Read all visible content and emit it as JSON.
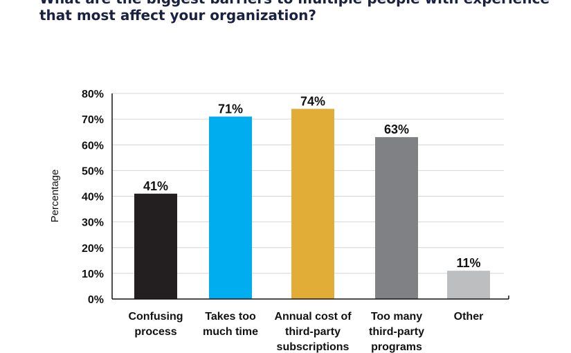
{
  "chart_data": {
    "type": "bar",
    "title_lines": [
      "What are the biggest barriers to multiple people with experience",
      "that most affect your organization?"
    ],
    "categories": [
      [
        "Confusing",
        "process"
      ],
      [
        "Takes too",
        "much time"
      ],
      [
        "Annual cost of",
        "third-party",
        "subscriptions"
      ],
      [
        "Too many",
        "third-party",
        "programs"
      ],
      [
        "Other"
      ]
    ],
    "values": [
      41,
      71,
      74,
      63,
      11
    ],
    "value_labels": [
      "41%",
      "71%",
      "74%",
      "63%",
      "11%"
    ],
    "colors": [
      "#231f20",
      "#00aeef",
      "#e1ad37",
      "#808184",
      "#bcbec0"
    ],
    "ylabel": "Percentage",
    "xlabel": "",
    "ylim": [
      0,
      80
    ],
    "yticks": [
      0,
      10,
      20,
      30,
      40,
      50,
      60,
      70,
      80
    ],
    "ytick_labels": [
      "0%",
      "10%",
      "20%",
      "30%",
      "40%",
      "50%",
      "60%",
      "70%",
      "80%"
    ],
    "grid": true
  }
}
